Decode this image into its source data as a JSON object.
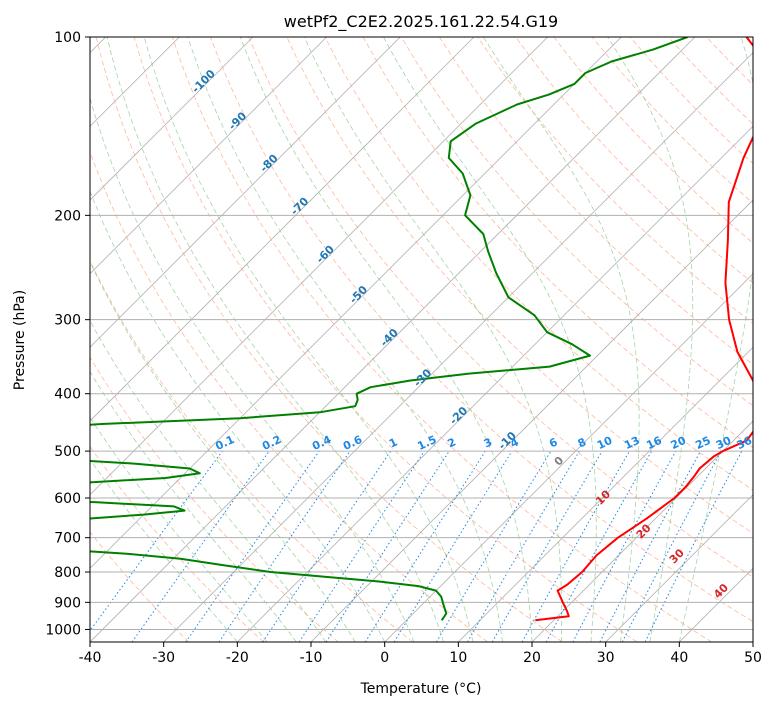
{
  "chart_data": {
    "type": "line",
    "title": "wetPf2_C2E2.2025.161.22.54.G19",
    "xlabel": "Temperature (°C)",
    "ylabel": "Pressure (hPa)",
    "xlim": [
      -40,
      50
    ],
    "ylim": [
      1050,
      100
    ],
    "y_scale": "log",
    "grid": true,
    "x_ticks": [
      "-40",
      "-30",
      "-20",
      "-10",
      "0",
      "10",
      "20",
      "30",
      "40",
      "50"
    ],
    "y_ticks": [
      "100",
      "200",
      "300",
      "400",
      "500",
      "600",
      "700",
      "800",
      "900",
      "1000"
    ],
    "y_tick_values": [
      100,
      200,
      300,
      400,
      500,
      600,
      700,
      800,
      900,
      1000
    ],
    "colors": {
      "temperature": "#ff0000",
      "dewpoint": "#008000",
      "isotherm": "#b0b0b0",
      "dry_adiabat": "#ffa07a",
      "moist_adiabat": "#90c990",
      "mixing_ratio": "#1e88e5",
      "isotherm_label": "#1f77b4",
      "moist_label": "#d62728"
    },
    "isotherm_labels": [
      "-100",
      "-90",
      "-80",
      "-70",
      "-60",
      "-50",
      "-40",
      "-30",
      "-20",
      "-10"
    ],
    "isotherm_label_values": [
      -100,
      -90,
      -80,
      -70,
      -60,
      -50,
      -40,
      -30,
      -20,
      -10
    ],
    "mixing_ratio_labels": [
      "0.1",
      "0.2",
      "0.4",
      "0.6",
      "1",
      "1.5",
      "2",
      "3",
      "4",
      "6",
      "8",
      "10",
      "13",
      "16",
      "20",
      "25",
      "30",
      "36"
    ],
    "mixing_ratio_values": [
      0.1,
      0.2,
      0.4,
      0.6,
      1,
      1.5,
      2,
      3,
      4,
      6,
      8,
      10,
      13,
      16,
      20,
      25,
      30,
      36
    ],
    "moist_adiabat_labels": [
      "0",
      "10",
      "20",
      "30",
      "40"
    ],
    "moist_adiabat_values": [
      0,
      10,
      20,
      30,
      40
    ],
    "series": [
      {
        "name": "Temperature",
        "points": [
          [
            965,
            17.5
          ],
          [
            950,
            21.5
          ],
          [
            930,
            20.5
          ],
          [
            900,
            18.8
          ],
          [
            860,
            16.5
          ],
          [
            840,
            17.0
          ],
          [
            800,
            17.3
          ],
          [
            750,
            17.0
          ],
          [
            700,
            17.5
          ],
          [
            650,
            18.8
          ],
          [
            600,
            19.8
          ],
          [
            575,
            19.8
          ],
          [
            550,
            19.5
          ],
          [
            535,
            19.2
          ],
          [
            510,
            19.5
          ],
          [
            500,
            20.0
          ],
          [
            480,
            21.8
          ],
          [
            455,
            21.3
          ],
          [
            420,
            19.0
          ],
          [
            380,
            14.5
          ],
          [
            340,
            8.5
          ],
          [
            300,
            3.0
          ],
          [
            260,
            -2.5
          ],
          [
            220,
            -8.0
          ],
          [
            190,
            -13.0
          ],
          [
            160,
            -17.0
          ],
          [
            140,
            -19.5
          ],
          [
            130,
            -21.0
          ],
          [
            120,
            -23.5
          ],
          [
            112,
            -26.0
          ],
          [
            105,
            -30.0
          ],
          [
            100,
            -33.0
          ]
        ]
      },
      {
        "name": "Dewpoint",
        "points": [
          [
            965,
            4.8
          ],
          [
            940,
            4.5
          ],
          [
            910,
            3.0
          ],
          [
            880,
            1.5
          ],
          [
            860,
            0.0
          ],
          [
            845,
            -3.0
          ],
          [
            830,
            -9.0
          ],
          [
            815,
            -17.0
          ],
          [
            800,
            -25.0
          ],
          [
            780,
            -32.0
          ],
          [
            760,
            -39.0
          ],
          [
            745,
            -47.0
          ],
          [
            735,
            -55.0
          ],
          [
            725,
            -62.0
          ],
          [
            720,
            -62.5
          ],
          [
            710,
            -58.0
          ],
          [
            695,
            -58.5
          ],
          [
            680,
            -60.0
          ],
          [
            665,
            -61.0
          ],
          [
            650,
            -57.0
          ],
          [
            640,
            -50.0
          ],
          [
            630,
            -45.0
          ],
          [
            620,
            -47.0
          ],
          [
            610,
            -58.0
          ],
          [
            600,
            -73.0
          ],
          [
            590,
            -80.0
          ],
          [
            575,
            -80.0
          ],
          [
            565,
            -62.0
          ],
          [
            555,
            -52.0
          ],
          [
            545,
            -48.0
          ],
          [
            535,
            -50.0
          ],
          [
            525,
            -58.0
          ],
          [
            515,
            -70.0
          ],
          [
            505,
            -78.0
          ],
          [
            480,
            -80.0
          ],
          [
            460,
            -80.0
          ],
          [
            450,
            -68.0
          ],
          [
            440,
            -50.0
          ],
          [
            430,
            -40.0
          ],
          [
            420,
            -36.0
          ],
          [
            410,
            -36.5
          ],
          [
            400,
            -37.5
          ],
          [
            390,
            -36.5
          ],
          [
            380,
            -32.0
          ],
          [
            370,
            -25.0
          ],
          [
            360,
            -15.0
          ],
          [
            345,
            -11.0
          ],
          [
            330,
            -15.0
          ],
          [
            315,
            -20.0
          ],
          [
            295,
            -24.0
          ],
          [
            275,
            -30.0
          ],
          [
            250,
            -35.0
          ],
          [
            230,
            -39.0
          ],
          [
            215,
            -42.0
          ],
          [
            200,
            -47.0
          ],
          [
            185,
            -49.0
          ],
          [
            170,
            -53.0
          ],
          [
            160,
            -57.0
          ],
          [
            150,
            -59.0
          ],
          [
            140,
            -58.0
          ],
          [
            130,
            -55.0
          ],
          [
            125,
            -52.0
          ],
          [
            120,
            -50.0
          ],
          [
            115,
            -50.0
          ],
          [
            110,
            -48.0
          ],
          [
            105,
            -44.0
          ],
          [
            100,
            -41.0
          ]
        ]
      }
    ]
  }
}
